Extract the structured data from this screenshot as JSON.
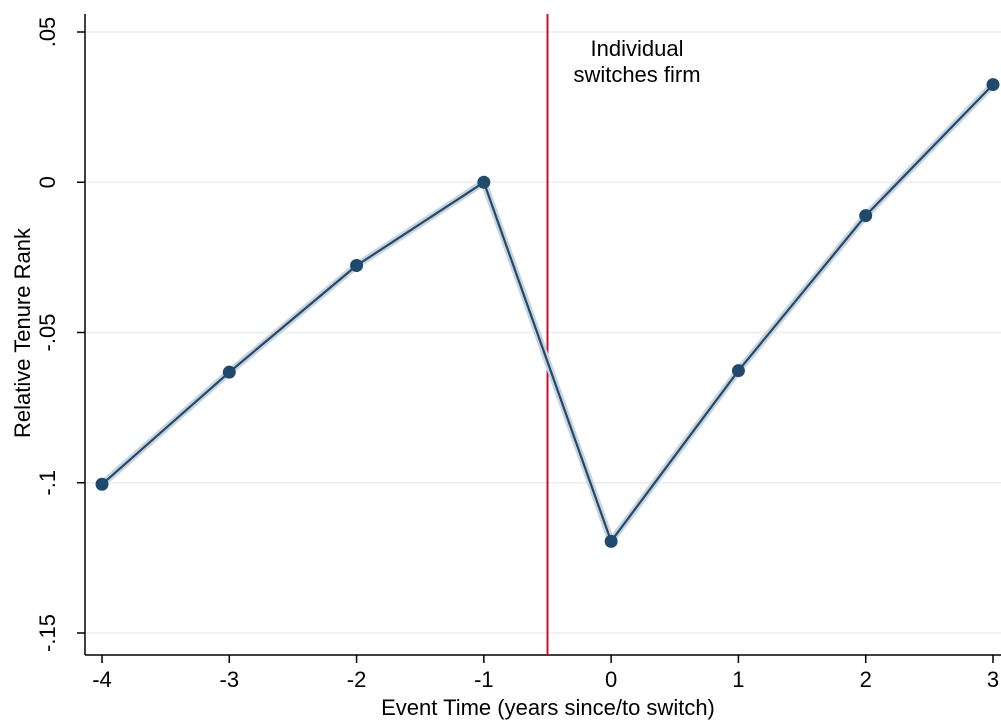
{
  "chart_data": {
    "type": "line",
    "title": "",
    "xlabel": "Event Time (years since/to switch)",
    "ylabel": "Relative Tenure Rank",
    "xlim": [
      -4,
      3
    ],
    "ylim": [
      -0.15,
      0.05
    ],
    "x_ticks": [
      -4,
      -3,
      -2,
      -1,
      0,
      1,
      2,
      3
    ],
    "x_tick_labels": [
      "-4",
      "-3",
      "-2",
      "-1",
      "0",
      "1",
      "2",
      "3"
    ],
    "y_ticks": [
      -0.15,
      -0.1,
      -0.05,
      0,
      0.05
    ],
    "y_tick_labels": [
      "-.15",
      "-.1",
      "-.05",
      "0",
      ".05"
    ],
    "grid": "horizontal",
    "series": [
      {
        "x": [
          -4,
          -3,
          -2,
          -1,
          0,
          1,
          2,
          3
        ],
        "values": [
          -0.1005,
          -0.0632,
          -0.0277,
          0.0,
          -0.1195,
          -0.0627,
          -0.0111,
          0.0325
        ],
        "color": "#1f4a6e"
      }
    ],
    "reference_line": {
      "x": -0.5,
      "color": "#c8102e",
      "label_lines": [
        "Individual",
        "switches firm"
      ]
    }
  }
}
